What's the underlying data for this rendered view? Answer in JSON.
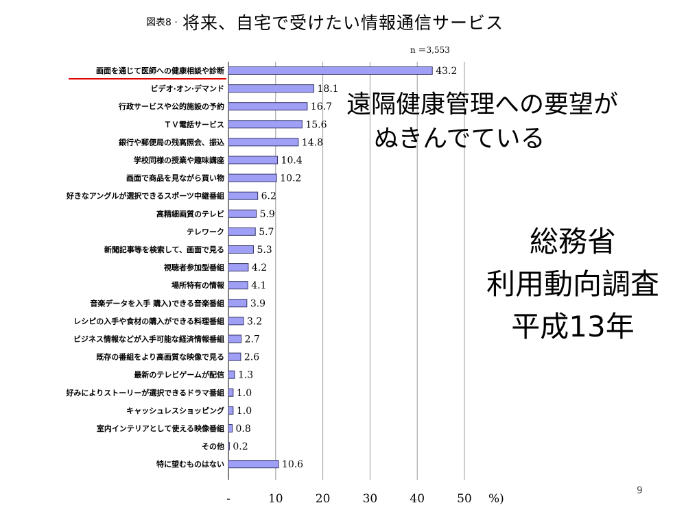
{
  "slide": {
    "figure_label": "図表8 ·",
    "title": "将来、自宅で受けたい情報通信サービス",
    "callout": [
      "遠隔健康管理への要望が",
      "ぬきんでている"
    ],
    "source": [
      "総務省",
      "利用動向調査",
      "平成13年"
    ],
    "page_number": "9"
  },
  "colors": {
    "bar": "#9f9ff6",
    "bar_stroke": "#333366",
    "underline": "#e00000",
    "grid": "#999999"
  },
  "chart_data": {
    "type": "bar",
    "orientation": "horizontal",
    "title": "将来、自宅で受けたい情報通信サービス",
    "sample_size": "n ＝3,553",
    "categories": [
      "画面を通じて医師への健康相談や診断",
      "ビデオ·オン·デマンド",
      "行政サービスや公的施設の予約",
      "ＴＶ電話サービス",
      "銀行や郵便局の残高照会、振込",
      "学校同様の授業や趣味講座",
      "画面で商品を見ながら買い物",
      "好きなアングルが選択できるスポーツ中継番組",
      "高精細画質のテレビ",
      "テレワーク",
      "新聞記事等を検索して、画面で見る",
      "視聴者参加型番組",
      "場所特有の情報",
      "音楽データを入手 購入)できる音楽番組",
      "レシピの入手や食材の購入ができる料理番組",
      "ビジネス情報などが入手可能な経済情報番組",
      "既存の番組をより高画質な映像で見る",
      "最新のテレビゲームが配信",
      "好みによりストーリーが選択できるドラマ番組",
      "キャッシュレスショッピング",
      "室内インテリアとして使える映像番組",
      "その他",
      "特に望むものはない"
    ],
    "values": [
      43.2,
      18.1,
      16.7,
      15.6,
      14.8,
      10.4,
      10.2,
      6.2,
      5.9,
      5.7,
      5.3,
      4.2,
      4.1,
      3.9,
      3.2,
      2.7,
      2.6,
      1.3,
      1.0,
      1.0,
      0.8,
      0.2,
      10.6
    ],
    "value_labels": [
      "43.2",
      "18.1",
      "16.7",
      "15.6",
      "14.8",
      "10.4",
      "10.2",
      "6.2",
      "5.9",
      "5.7",
      "5.3",
      "4.2",
      "4.1",
      "3.9",
      "3.2",
      "2.7",
      "2.6",
      "1.3",
      "1.0",
      "1.0",
      "0.8",
      "0.2",
      "10.6"
    ],
    "xlim": [
      0,
      50
    ],
    "x_ticks": [
      "-",
      "10",
      "20",
      "30",
      "40",
      "50"
    ],
    "x_unit_label": "%)",
    "grid": true,
    "highlighted_category": "画面を通じて医師への健康相談や診断"
  }
}
